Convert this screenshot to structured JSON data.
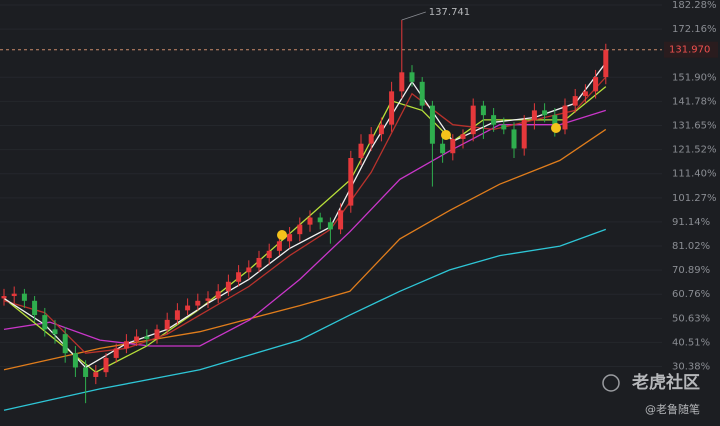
{
  "chart_data": {
    "type": "candlestick",
    "ylim": [
      5.4,
      184.38
    ],
    "yticks": [
      {
        "value": 182.28,
        "label": "182.28%"
      },
      {
        "value": 172.16,
        "label": "172.16%"
      },
      {
        "value": 151.9,
        "label": "151.90%"
      },
      {
        "value": 141.78,
        "label": "141.78%"
      },
      {
        "value": 131.65,
        "label": "131.65%"
      },
      {
        "value": 121.52,
        "label": "121.52%"
      },
      {
        "value": 111.4,
        "label": "111.40%"
      },
      {
        "value": 101.27,
        "label": "101.27%"
      },
      {
        "value": 91.14,
        "label": "91.14%"
      },
      {
        "value": 81.02,
        "label": "81.02%"
      },
      {
        "value": 70.89,
        "label": "70.89%"
      },
      {
        "value": 60.76,
        "label": "60.76%"
      },
      {
        "value": 50.63,
        "label": "50.63%"
      },
      {
        "value": 40.51,
        "label": "40.51%"
      },
      {
        "value": 30.38,
        "label": "30.38%"
      }
    ],
    "grid": true,
    "candles": {
      "up_color": "#e5383b",
      "down_color": "#2fae4e",
      "open": [
        59,
        60,
        61,
        58,
        52,
        46,
        44,
        36,
        30,
        26,
        28,
        34,
        38,
        41,
        43,
        42,
        46,
        50,
        54,
        56,
        58,
        59,
        62,
        66,
        70,
        72,
        76,
        79,
        83,
        86,
        90,
        93,
        91,
        88,
        98,
        118,
        124,
        128,
        132,
        146,
        154,
        150,
        140,
        124,
        120,
        126,
        128,
        140,
        136,
        132,
        130,
        122,
        134,
        138,
        136,
        130,
        140,
        144,
        146,
        152
      ],
      "high": [
        63,
        64,
        63,
        60,
        55,
        50,
        47,
        39,
        33,
        31,
        36,
        40,
        44,
        46,
        46,
        48,
        53,
        57,
        59,
        61,
        62,
        65,
        69,
        73,
        75,
        79,
        82,
        86,
        89,
        93,
        96,
        95,
        93,
        99,
        121,
        128,
        131,
        135,
        150,
        176,
        157,
        152,
        142,
        128,
        128,
        130,
        143,
        142,
        139,
        135,
        133,
        136,
        141,
        141,
        139,
        143,
        147,
        149,
        155,
        166
      ],
      "low": [
        56,
        57,
        55,
        49,
        43,
        40,
        32,
        26,
        15,
        23,
        26,
        32,
        36,
        39,
        39,
        40,
        44,
        48,
        52,
        54,
        55,
        57,
        60,
        64,
        67,
        70,
        73,
        77,
        80,
        83,
        87,
        88,
        82,
        86,
        95,
        115,
        121,
        125,
        129,
        143,
        148,
        138,
        106,
        116,
        117,
        122,
        125,
        126,
        129,
        128,
        118,
        119,
        130,
        133,
        127,
        128,
        137,
        141,
        143,
        149
      ],
      "close": [
        60,
        61,
        58,
        52,
        46,
        44,
        36,
        30,
        26,
        28,
        34,
        38,
        41,
        43,
        42,
        46,
        50,
        54,
        56,
        58,
        59,
        62,
        66,
        70,
        72,
        76,
        79,
        83,
        86,
        90,
        93,
        91,
        88,
        96,
        118,
        124,
        128,
        132,
        146,
        154,
        150,
        140,
        124,
        120,
        126,
        128,
        140,
        136,
        132,
        130,
        122,
        134,
        138,
        136,
        130,
        140,
        144,
        146,
        152,
        163.5
      ]
    },
    "series": [
      {
        "color": "#2ec6d6",
        "x": [
          0,
          9.4,
          19.2,
          29,
          33.9,
          38.8,
          43.7,
          48.6,
          54.5,
          59
        ],
        "values": [
          12,
          21,
          29,
          41.5,
          52,
          62,
          71,
          77,
          81,
          88
        ]
      },
      {
        "color": "#e07d1c",
        "x": [
          0,
          9.4,
          19.2,
          29,
          33.9,
          38.8,
          43.7,
          48.6,
          54.5,
          59
        ],
        "values": [
          29,
          38,
          45,
          56,
          62,
          84,
          96,
          107,
          117,
          130
        ]
      },
      {
        "color": "#c936c9",
        "x": [
          0,
          4.5,
          9.4,
          14.3,
          19.2,
          24.1,
          29,
          33.9,
          38.8,
          43.7,
          48.6,
          54.5,
          59
        ],
        "values": [
          46,
          49,
          41.5,
          39,
          39,
          50,
          67,
          87,
          109,
          121,
          132,
          132,
          138
        ]
      },
      {
        "color": "#b8e03a",
        "x": [
          0,
          9,
          14,
          19,
          24,
          29,
          34,
          38,
          41,
          44,
          47,
          51,
          55,
          59
        ],
        "values": [
          59,
          28,
          39,
          54,
          71,
          90,
          109,
          142,
          138,
          125,
          134,
          134,
          134,
          148
        ]
      },
      {
        "color": "#b8322c",
        "x": [
          0,
          4,
          8,
          12,
          16,
          20,
          24,
          28,
          32,
          36,
          40,
          44,
          48,
          52,
          56,
          59
        ],
        "values": [
          58,
          53,
          36,
          38,
          44,
          54,
          64,
          77,
          88,
          112,
          145,
          132,
          130,
          134,
          138,
          152
        ]
      },
      {
        "color": "#f2f2f2",
        "x": [
          0,
          4,
          8,
          12,
          16,
          20,
          24,
          28,
          32,
          36,
          40,
          44,
          48,
          52,
          56,
          59
        ],
        "values": [
          59,
          48,
          30,
          40,
          46,
          57,
          67,
          80,
          89,
          122,
          150,
          125,
          133,
          135,
          141,
          158
        ]
      }
    ],
    "high_label": "137.741",
    "last_price_label": "131.970",
    "watermark": {
      "brand": "老虎社区",
      "author": "@老鲁随笔"
    }
  }
}
